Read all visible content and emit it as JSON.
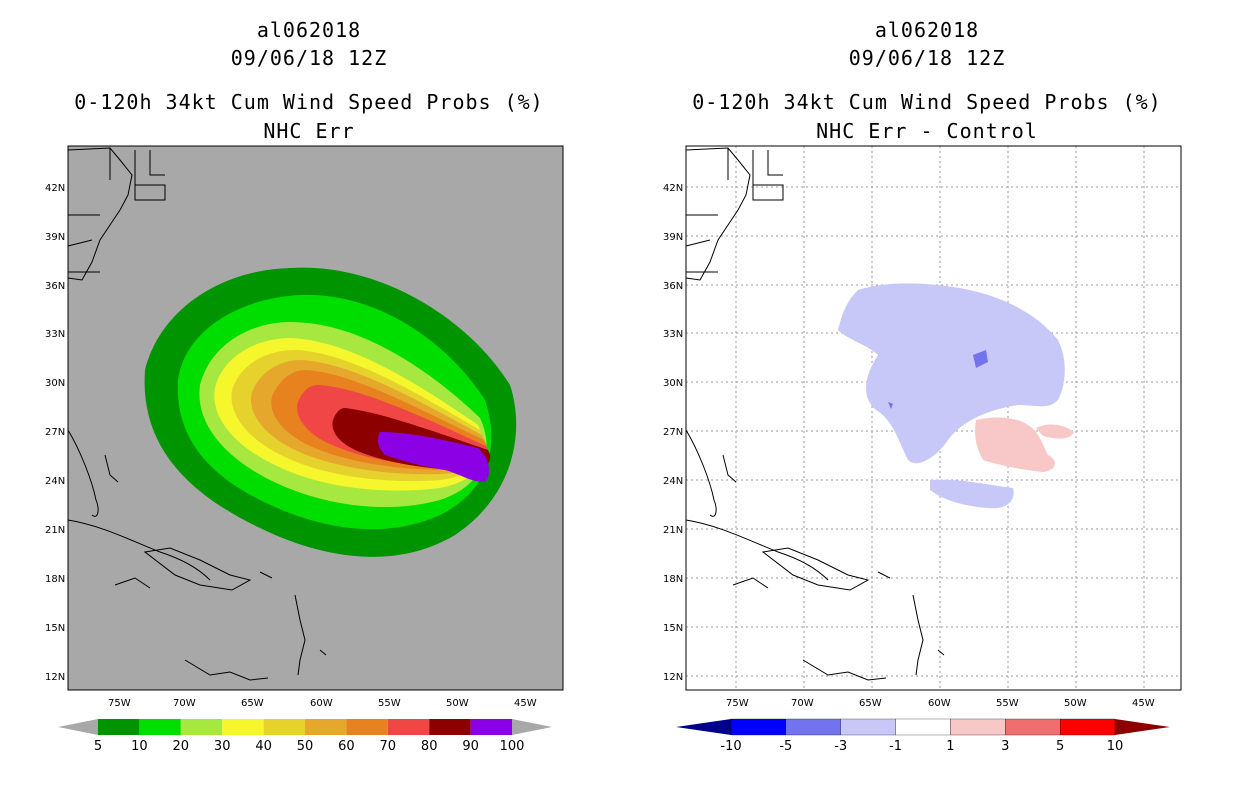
{
  "left": {
    "storm_id": "al062018",
    "datetime": "09/06/18 12Z",
    "product": "0-120h 34kt Cum Wind Speed Probs (%)",
    "subtitle": "NHC Err",
    "colorbar": {
      "labels": [
        "5",
        "10",
        "20",
        "30",
        "40",
        "50",
        "60",
        "70",
        "80",
        "90",
        "100"
      ],
      "colors": [
        "#009500",
        "#00de00",
        "#a6e840",
        "#f6f62c",
        "#e6d22c",
        "#e6a82c",
        "#e8821e",
        "#f04646",
        "#8c0000",
        "#8c00e6"
      ]
    }
  },
  "right": {
    "storm_id": "al062018",
    "datetime": "09/06/18 12Z",
    "product": "0-120h 34kt Cum Wind Speed Probs (%)",
    "subtitle": "NHC Err - Control",
    "colorbar": {
      "labels": [
        "-10",
        "-5",
        "-3",
        "-1",
        "1",
        "3",
        "5",
        "10"
      ],
      "colors": [
        "#00008c",
        "#0000ff",
        "#7373f0",
        "#c8c8f8",
        "#ffffff",
        "#f8c8c8",
        "#f06e6e",
        "#ff0000",
        "#8c0000"
      ]
    }
  },
  "axes": {
    "lat_labels": [
      "42N",
      "39N",
      "36N",
      "33N",
      "30N",
      "27N",
      "24N",
      "21N",
      "18N",
      "15N",
      "12N"
    ],
    "lon_labels": [
      "75W",
      "70W",
      "65W",
      "60W",
      "55W",
      "50W",
      "45W"
    ]
  },
  "colors": {
    "background_gray": "#a8a8a8",
    "grid": "#999999"
  }
}
